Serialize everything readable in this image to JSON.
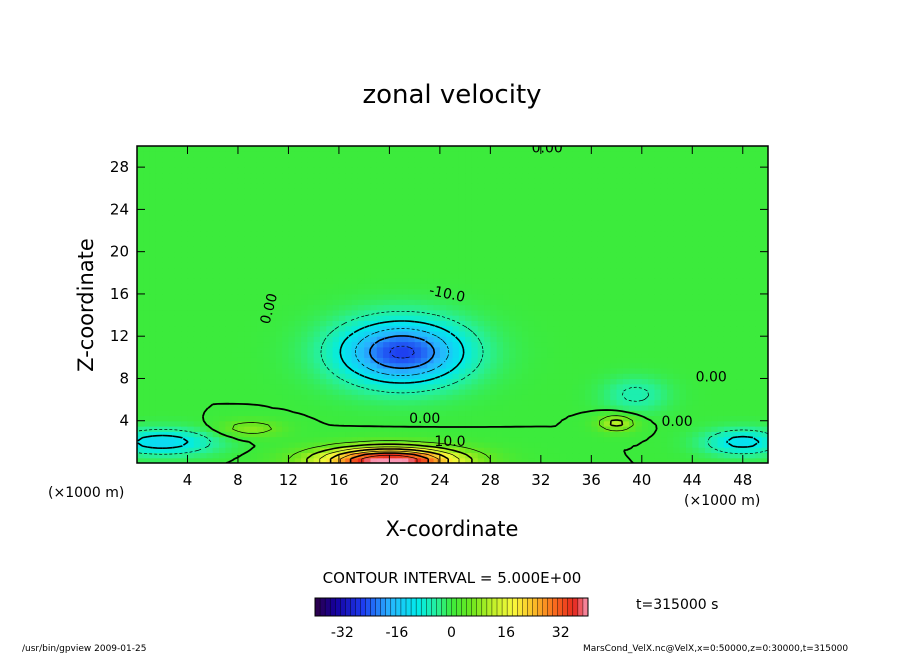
{
  "chart_data": {
    "type": "heatmap",
    "title": "zonal velocity",
    "xlabel": "X-coordinate",
    "ylabel": "Z-coordinate",
    "x_unit": "(×1000 m)",
    "y_unit": "(×1000 m)",
    "xlim": [
      0,
      50
    ],
    "ylim": [
      0,
      30
    ],
    "x_ticks": [
      4,
      8,
      12,
      16,
      20,
      24,
      28,
      32,
      36,
      40,
      44,
      48
    ],
    "y_ticks": [
      4,
      8,
      12,
      16,
      20,
      24,
      28
    ],
    "contour_interval_text": "CONTOUR INTERVAL = 5.000E+00",
    "time_text": "t=315000 s",
    "colorbar": {
      "min": -40,
      "max": 40,
      "ticks": [
        -32,
        -16,
        0,
        16,
        32
      ]
    },
    "velocity_features": [
      {
        "name": "upper-jet",
        "cx": 21,
        "cy": 10.5,
        "sx": 5.0,
        "sy": 3.0,
        "amp": -26
      },
      {
        "name": "surface-jet",
        "cx": 20,
        "cy": 0.2,
        "sx": 5.5,
        "sy": 1.3,
        "amp": 42
      },
      {
        "name": "left-surface",
        "cx": 2,
        "cy": 2.0,
        "sx": 4.0,
        "sy": 1.2,
        "amp": -13
      },
      {
        "name": "right-surface",
        "cx": 48,
        "cy": 2.0,
        "sx": 3.0,
        "sy": 1.2,
        "amp": -12
      },
      {
        "name": "right-cell",
        "cx": 39.5,
        "cy": 6.5,
        "sx": 2.5,
        "sy": 1.6,
        "amp": -6
      },
      {
        "name": "right-low",
        "cx": 38,
        "cy": 3.8,
        "sx": 1.5,
        "sy": 0.8,
        "amp": 12
      },
      {
        "name": "left-low",
        "cx": 9,
        "cy": 3.3,
        "sx": 2.5,
        "sy": 0.8,
        "amp": 8
      }
    ],
    "contour_labels": [
      {
        "text": "0.00",
        "x": 32.5,
        "y": 29.4,
        "rotate": 0
      },
      {
        "text": "-10.0",
        "x": 24.5,
        "y": 15.6,
        "rotate": 12
      },
      {
        "text": "0.00",
        "x": 10.8,
        "y": 14.5,
        "rotate": -75
      },
      {
        "text": "0.00",
        "x": 45.5,
        "y": 7.7,
        "rotate": 0
      },
      {
        "text": "0.00",
        "x": 22.8,
        "y": 3.8,
        "rotate": 0
      },
      {
        "text": "0.00",
        "x": 42.8,
        "y": 3.5,
        "rotate": 0
      },
      {
        "text": "10.0",
        "x": 24.8,
        "y": 1.6,
        "rotate": 0
      }
    ]
  },
  "footer": {
    "left": "/usr/bin/gpview   2009-01-25",
    "right": "MarsCond_VelX.nc@VelX,x=0:50000,z=0:30000,t=315000"
  }
}
